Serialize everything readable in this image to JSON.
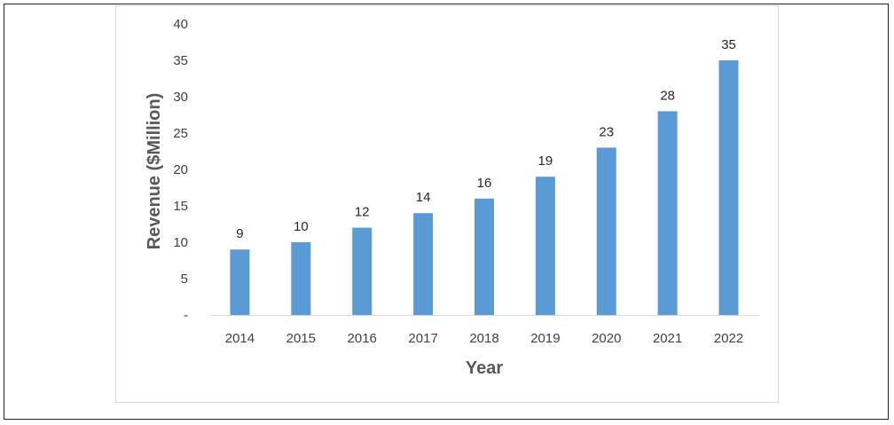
{
  "chart_data": {
    "type": "bar",
    "categories": [
      "2014",
      "2015",
      "2016",
      "2017",
      "2018",
      "2019",
      "2020",
      "2021",
      "2022"
    ],
    "values": [
      9,
      10,
      12,
      14,
      16,
      19,
      23,
      28,
      35
    ],
    "data_labels": [
      "9",
      "10",
      "12",
      "14",
      "16",
      "19",
      "23",
      "28",
      "35"
    ],
    "xlabel": "Year",
    "ylabel": "Revenue ($Million)",
    "ylim": [
      0,
      40
    ],
    "y_ticks": [
      {
        "value": 0,
        "label": "-"
      },
      {
        "value": 5,
        "label": "5"
      },
      {
        "value": 10,
        "label": "10"
      },
      {
        "value": 15,
        "label": "15"
      },
      {
        "value": 20,
        "label": "20"
      },
      {
        "value": 25,
        "label": "25"
      },
      {
        "value": 30,
        "label": "30"
      },
      {
        "value": 35,
        "label": "35"
      },
      {
        "value": 40,
        "label": "40"
      }
    ],
    "grid": false,
    "legend": "none",
    "bar_color": "#5b9bd5"
  }
}
